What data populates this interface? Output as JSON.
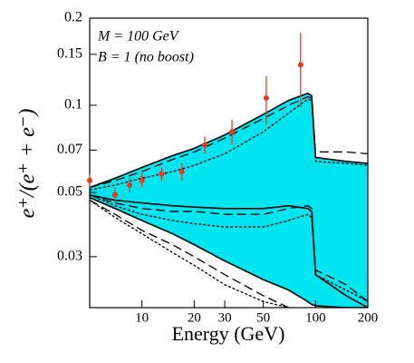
{
  "chart_data": {
    "type": "line",
    "annotations": [
      "M = 100 GeV",
      "B = 1 (no boost)"
    ],
    "xlabel": "Energy (GeV)",
    "ylabel": "e⁺/(e⁺ + e⁻)",
    "log_x": true,
    "log_y": true,
    "xlim": [
      5,
      200
    ],
    "xticks": [
      10,
      20,
      30,
      50,
      100,
      200
    ],
    "ylim": [
      0.02,
      0.2
    ],
    "yticks": [
      0.03,
      0.05,
      0.07,
      0.1,
      0.15,
      0.2
    ],
    "x": [
      5,
      7,
      10,
      15,
      20,
      30,
      50,
      70,
      90,
      95,
      100,
      150,
      200
    ],
    "band": {
      "color": "#00e5ee",
      "upper": [
        0.052,
        0.056,
        0.061,
        0.067,
        0.071,
        0.079,
        0.093,
        0.104,
        0.11,
        0.108,
        0.066,
        0.064,
        0.063
      ],
      "lower": [
        0.048,
        0.044,
        0.04,
        0.036,
        0.033,
        0.029,
        0.025,
        0.023,
        0.021,
        0.0205,
        0.0203,
        0.02,
        0.02
      ]
    },
    "series": [
      {
        "color": "#000000",
        "style": "solid",
        "values": [
          0.052,
          0.056,
          0.061,
          0.067,
          0.071,
          0.079,
          0.093,
          0.104,
          0.11,
          0.108,
          0.066,
          0.064,
          0.063
        ]
      },
      {
        "color": "#000000",
        "style": "solid",
        "values": [
          0.048,
          0.044,
          0.04,
          0.036,
          0.033,
          0.029,
          0.025,
          0.023,
          0.021,
          0.0205,
          0.0203,
          0.02,
          0.02
        ]
      },
      {
        "color": "#000000",
        "style": "solid",
        "values": [
          0.049,
          0.047,
          0.046,
          0.045,
          0.0445,
          0.044,
          0.044,
          0.045,
          0.044,
          0.043,
          0.026,
          0.022,
          0.02
        ]
      },
      {
        "color": "#000000",
        "style": "dashed",
        "values": [
          0.052,
          0.055,
          0.059,
          0.065,
          0.069,
          0.077,
          0.09,
          0.1,
          0.107,
          0.106,
          0.069,
          0.069,
          0.068
        ]
      },
      {
        "color": "#000000",
        "style": "dotted",
        "values": [
          0.051,
          0.053,
          0.056,
          0.059,
          0.062,
          0.068,
          0.081,
          0.094,
          0.105,
          0.104,
          0.064,
          0.063,
          0.062
        ]
      },
      {
        "color": "#000000",
        "style": "dashed",
        "values": [
          0.049,
          0.046,
          0.044,
          0.043,
          0.043,
          0.042,
          0.042,
          0.044,
          0.045,
          0.044,
          0.027,
          0.024,
          0.021
        ]
      },
      {
        "color": "#000000",
        "style": "dotted",
        "values": [
          0.049,
          0.045,
          0.042,
          0.04,
          0.039,
          0.038,
          0.038,
          0.04,
          0.042,
          0.041,
          0.026,
          0.023,
          0.021
        ]
      },
      {
        "color": "#000000",
        "style": "dashed",
        "values": [
          0.047,
          0.042,
          0.037,
          0.033,
          0.03,
          0.026,
          0.022,
          0.02,
          null,
          null,
          null,
          null,
          null
        ]
      },
      {
        "color": "#000000",
        "style": "dotted",
        "values": [
          0.047,
          0.041,
          0.036,
          0.031,
          0.028,
          0.024,
          0.021,
          0.02,
          null,
          null,
          null,
          null,
          null
        ]
      }
    ],
    "points": {
      "color": "#e8391d",
      "x": [
        5,
        7,
        8.5,
        10,
        13,
        17,
        23,
        33,
        52,
        82
      ],
      "y": [
        0.055,
        0.049,
        0.053,
        0.055,
        0.058,
        0.059,
        0.073,
        0.081,
        0.106,
        0.138
      ],
      "err": [
        0.003,
        0.003,
        0.003,
        0.003,
        0.003,
        0.004,
        0.005,
        0.008,
        0.02,
        0.04
      ]
    }
  }
}
